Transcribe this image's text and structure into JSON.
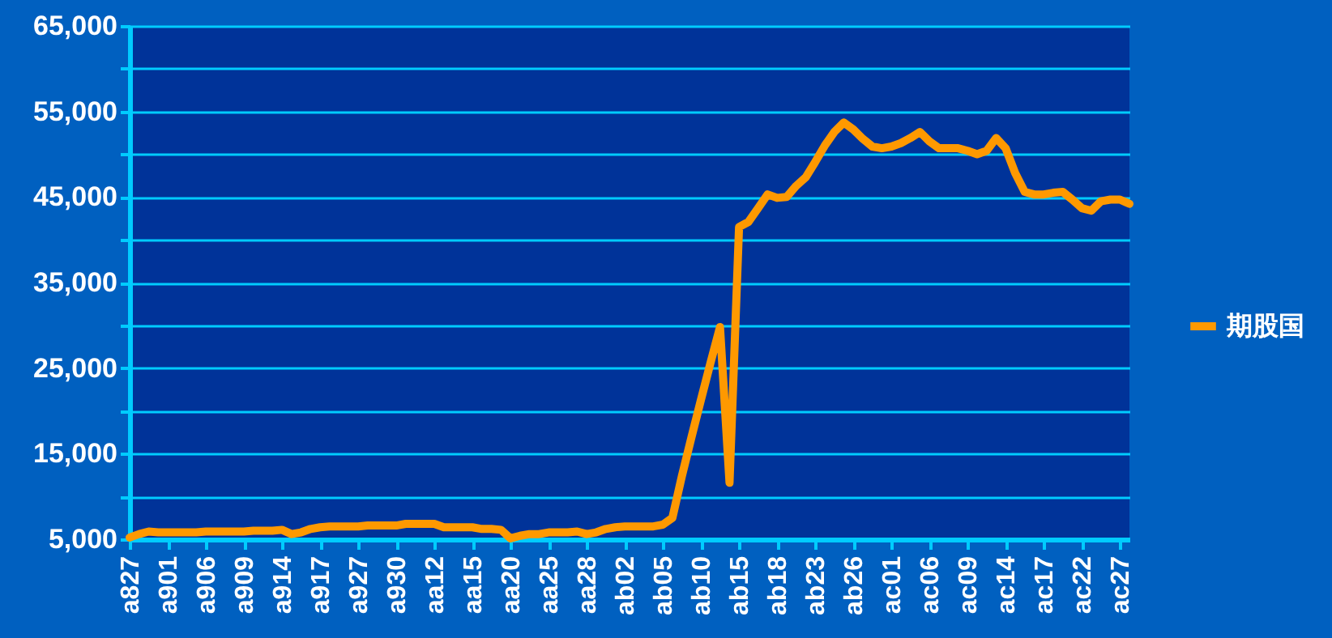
{
  "chart_data": {
    "type": "line",
    "categories": [
      "a827",
      null,
      null,
      null,
      "a901",
      null,
      null,
      null,
      "a906",
      null,
      null,
      null,
      "a909",
      null,
      null,
      null,
      "a914",
      null,
      null,
      null,
      "a917",
      null,
      null,
      null,
      "a927",
      null,
      null,
      null,
      "a930",
      null,
      null,
      null,
      "aa12",
      null,
      null,
      null,
      "aa15",
      null,
      null,
      null,
      "aa20",
      null,
      null,
      null,
      "aa25",
      null,
      null,
      null,
      "aa28",
      null,
      null,
      null,
      "ab02",
      null,
      null,
      null,
      "ab05",
      null,
      null,
      null,
      "ab10",
      null,
      null,
      null,
      "ab15",
      null,
      null,
      null,
      "ab18",
      null,
      null,
      null,
      "ab23",
      null,
      null,
      null,
      "ab26",
      null,
      null,
      null,
      "ac01",
      null,
      null,
      null,
      "ac06",
      null,
      null,
      null,
      "ac09",
      null,
      null,
      null,
      "ac14",
      null,
      null,
      null,
      "ac17",
      null,
      null,
      null,
      "ac22",
      null,
      null,
      null,
      "ac27",
      null
    ],
    "series": [
      {
        "name": "期股国",
        "color": "#ff9900",
        "values": [
          5200,
          5600,
          5900,
          5800,
          5800,
          5800,
          5800,
          5800,
          5900,
          5900,
          5900,
          5900,
          5900,
          6000,
          6000,
          6000,
          6100,
          5600,
          5800,
          6200,
          6400,
          6500,
          6500,
          6500,
          6500,
          6600,
          6600,
          6600,
          6600,
          6800,
          6800,
          6800,
          6800,
          6400,
          6400,
          6400,
          6400,
          6200,
          6200,
          6100,
          5100,
          5400,
          5600,
          5600,
          5800,
          5800,
          5800,
          5900,
          5600,
          5800,
          6200,
          6400,
          6500,
          6500,
          6500,
          6500,
          6700,
          7500,
          12400,
          16900,
          21300,
          25600,
          29800,
          11600,
          41500,
          42100,
          43700,
          45300,
          44900,
          45000,
          46300,
          47300,
          49100,
          51000,
          52600,
          53700,
          52900,
          51800,
          50900,
          50700,
          50900,
          51300,
          51900,
          52600,
          51500,
          50700,
          50700,
          50700,
          50400,
          50000,
          50400,
          51900,
          50700,
          47800,
          45600,
          45300,
          45300,
          45500,
          45600,
          44700,
          43700,
          43400,
          44500,
          44700,
          44700,
          44200
        ]
      }
    ],
    "ylim": [
      5000,
      65000
    ],
    "yticks": [
      {
        "value": 5000,
        "label": "5,000"
      },
      {
        "value": 10000,
        "label": null
      },
      {
        "value": 15000,
        "label": "15,000"
      },
      {
        "value": 20000,
        "label": null
      },
      {
        "value": 25000,
        "label": "25,000"
      },
      {
        "value": 30000,
        "label": null
      },
      {
        "value": 35000,
        "label": "35,000"
      },
      {
        "value": 40000,
        "label": null
      },
      {
        "value": 45000,
        "label": "45,000"
      },
      {
        "value": 50000,
        "label": null
      },
      {
        "value": 55000,
        "label": "55,000"
      },
      {
        "value": 60000,
        "label": null
      },
      {
        "value": 65000,
        "label": "65,000"
      }
    ],
    "grid": "y",
    "legend": "right",
    "marker": "none",
    "line_style": "solid"
  }
}
